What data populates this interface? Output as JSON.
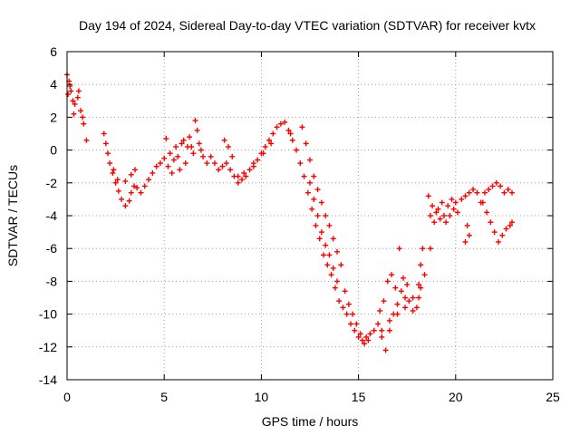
{
  "chart_data": {
    "type": "scatter",
    "title": "Day 194 of 2024, Sidereal Day-to-day VTEC variation (SDTVAR) for receiver kvtx",
    "xlabel": "GPS time / hours",
    "ylabel": "SDTVAR / TECUs",
    "xlim": [
      0,
      25
    ],
    "ylim": [
      -14,
      6
    ],
    "xticks": [
      "0",
      "5",
      "10",
      "15",
      "20",
      "25"
    ],
    "yticks": [
      "-14",
      "-12",
      "-10",
      "-8",
      "-6",
      "-4",
      "-2",
      "0",
      "2",
      "4",
      "6"
    ],
    "grid": true,
    "marker": "+",
    "color": "#ff0000",
    "series": [
      {
        "name": "SDTVAR",
        "points": [
          [
            0.0,
            4.6
          ],
          [
            0.1,
            4.2
          ],
          [
            0.2,
            3.6
          ],
          [
            0.3,
            3.0
          ],
          [
            0.4,
            2.8
          ],
          [
            0.55,
            3.2
          ],
          [
            0.7,
            2.4
          ],
          [
            0.85,
            1.6
          ],
          [
            1.0,
            0.6
          ],
          [
            0.05,
            3.4
          ],
          [
            0.15,
            3.9
          ],
          [
            0.35,
            2.2
          ],
          [
            0.6,
            3.6
          ],
          [
            0.8,
            2.0
          ],
          [
            1.9,
            1.0
          ],
          [
            2.0,
            0.4
          ],
          [
            2.1,
            -0.2
          ],
          [
            2.2,
            -0.8
          ],
          [
            2.35,
            -1.4
          ],
          [
            2.5,
            -2.0
          ],
          [
            2.65,
            -2.5
          ],
          [
            2.8,
            -3.0
          ],
          [
            3.0,
            -3.4
          ],
          [
            3.2,
            -3.1
          ],
          [
            3.3,
            -2.6
          ],
          [
            3.45,
            -2.2
          ],
          [
            3.6,
            -2.3
          ],
          [
            3.8,
            -2.6
          ],
          [
            4.0,
            -2.2
          ],
          [
            4.2,
            -1.8
          ],
          [
            4.4,
            -1.4
          ],
          [
            4.6,
            -1.0
          ],
          [
            2.4,
            -1.2
          ],
          [
            2.6,
            -1.8
          ],
          [
            3.0,
            -1.9
          ],
          [
            3.3,
            -1.5
          ],
          [
            3.5,
            -1.2
          ],
          [
            4.8,
            -0.8
          ],
          [
            5.0,
            -0.5
          ],
          [
            5.1,
            0.7
          ],
          [
            5.2,
            -1.0
          ],
          [
            5.3,
            -0.2
          ],
          [
            5.4,
            -1.4
          ],
          [
            5.5,
            -0.6
          ],
          [
            5.6,
            0.2
          ],
          [
            5.7,
            -0.4
          ],
          [
            5.8,
            -1.2
          ],
          [
            5.9,
            0.4
          ],
          [
            6.0,
            0.6
          ],
          [
            6.1,
            -0.8
          ],
          [
            6.2,
            0.2
          ],
          [
            6.3,
            0.8
          ],
          [
            6.4,
            0.2
          ],
          [
            6.5,
            -0.2
          ],
          [
            6.6,
            1.8
          ],
          [
            6.7,
            1.2
          ],
          [
            6.8,
            0.4
          ],
          [
            6.9,
            0.0
          ],
          [
            7.0,
            -0.4
          ],
          [
            7.2,
            -0.8
          ],
          [
            7.4,
            -0.4
          ],
          [
            7.6,
            -0.8
          ],
          [
            7.8,
            -1.2
          ],
          [
            8.0,
            -1.0
          ],
          [
            8.2,
            -0.8
          ],
          [
            8.4,
            -1.2
          ],
          [
            8.6,
            -1.6
          ],
          [
            8.8,
            -2.0
          ],
          [
            9.0,
            -1.8
          ],
          [
            9.2,
            -1.6
          ],
          [
            9.4,
            -1.2
          ],
          [
            9.6,
            -0.8
          ],
          [
            9.8,
            -0.6
          ],
          [
            10.0,
            -0.2
          ],
          [
            10.2,
            0.2
          ],
          [
            10.4,
            0.6
          ],
          [
            10.6,
            1.0
          ],
          [
            10.8,
            1.4
          ],
          [
            11.0,
            1.6
          ],
          [
            11.2,
            1.7
          ],
          [
            8.1,
            0.6
          ],
          [
            8.3,
            0.2
          ],
          [
            8.5,
            -0.4
          ],
          [
            8.8,
            -1.6
          ],
          [
            9.1,
            -1.4
          ],
          [
            9.6,
            -1.0
          ],
          [
            10.1,
            -0.2
          ],
          [
            10.5,
            0.4
          ],
          [
            11.4,
            1.2
          ],
          [
            11.5,
            1.0
          ],
          [
            11.6,
            0.6
          ],
          [
            11.8,
            0.0
          ],
          [
            12.0,
            -0.8
          ],
          [
            12.2,
            -1.6
          ],
          [
            12.4,
            -2.6
          ],
          [
            12.6,
            -3.6
          ],
          [
            12.8,
            -4.6
          ],
          [
            13.0,
            -5.4
          ],
          [
            13.2,
            -6.4
          ],
          [
            13.4,
            -7.0
          ],
          [
            13.6,
            -7.6
          ],
          [
            13.8,
            -8.4
          ],
          [
            14.0,
            -9.2
          ],
          [
            14.2,
            -9.6
          ],
          [
            12.1,
            1.4
          ],
          [
            12.3,
            0.4
          ],
          [
            12.5,
            -0.6
          ],
          [
            12.7,
            -1.6
          ],
          [
            12.9,
            -2.4
          ],
          [
            13.1,
            -3.2
          ],
          [
            13.3,
            -4.0
          ],
          [
            13.5,
            -4.6
          ],
          [
            13.7,
            -5.4
          ],
          [
            13.9,
            -6.2
          ],
          [
            14.1,
            -7.0
          ],
          [
            12.5,
            -2.0
          ],
          [
            12.7,
            -3.0
          ],
          [
            12.9,
            -4.0
          ],
          [
            13.1,
            -5.0
          ],
          [
            13.3,
            -5.8
          ],
          [
            13.5,
            -6.4
          ],
          [
            13.7,
            -7.2
          ],
          [
            13.9,
            -8.0
          ],
          [
            14.4,
            -10.0
          ],
          [
            14.6,
            -10.6
          ],
          [
            14.8,
            -11.0
          ],
          [
            15.0,
            -11.4
          ],
          [
            15.2,
            -11.6
          ],
          [
            15.4,
            -11.4
          ],
          [
            15.6,
            -11.2
          ],
          [
            15.8,
            -11.0
          ],
          [
            14.3,
            -8.6
          ],
          [
            14.5,
            -9.4
          ],
          [
            14.7,
            -10.0
          ],
          [
            14.9,
            -10.6
          ],
          [
            15.1,
            -11.2
          ],
          [
            15.3,
            -11.8
          ],
          [
            15.5,
            -11.6
          ],
          [
            16.0,
            -10.6
          ],
          [
            16.2,
            -11.4
          ],
          [
            16.4,
            -12.2
          ],
          [
            16.6,
            -11.0
          ],
          [
            16.8,
            -10.0
          ],
          [
            17.0,
            -9.4
          ],
          [
            17.2,
            -8.6
          ],
          [
            17.4,
            -9.0
          ],
          [
            16.1,
            -9.8
          ],
          [
            16.3,
            -9.2
          ],
          [
            16.5,
            -8.0
          ],
          [
            16.7,
            -7.6
          ],
          [
            16.9,
            -8.4
          ],
          [
            17.1,
            -6.0
          ],
          [
            17.3,
            -7.8
          ],
          [
            17.5,
            -8.2
          ],
          [
            17.6,
            -9.2
          ],
          [
            17.8,
            -9.8
          ],
          [
            18.0,
            -9.6
          ],
          [
            18.1,
            -8.2
          ],
          [
            18.2,
            -7.0
          ],
          [
            18.3,
            -6.0
          ],
          [
            18.4,
            -7.6
          ],
          [
            18.1,
            -9.0
          ],
          [
            16.2,
            -11.0
          ],
          [
            16.6,
            -10.4
          ],
          [
            17.0,
            -10.0
          ],
          [
            17.4,
            -9.6
          ],
          [
            17.8,
            -9.0
          ],
          [
            18.2,
            -8.4
          ],
          [
            18.7,
            -6.0
          ],
          [
            18.6,
            -2.8
          ],
          [
            18.8,
            -3.4
          ],
          [
            19.0,
            -3.8
          ],
          [
            19.2,
            -4.2
          ],
          [
            19.4,
            -4.0
          ],
          [
            19.6,
            -3.4
          ],
          [
            19.8,
            -3.0
          ],
          [
            20.0,
            -3.2
          ],
          [
            18.7,
            -4.0
          ],
          [
            18.9,
            -4.4
          ],
          [
            19.1,
            -3.6
          ],
          [
            19.3,
            -3.2
          ],
          [
            19.5,
            -4.4
          ],
          [
            19.7,
            -4.0
          ],
          [
            19.9,
            -3.6
          ],
          [
            20.1,
            -3.8
          ],
          [
            20.3,
            -3.0
          ],
          [
            20.5,
            -2.8
          ],
          [
            20.7,
            -2.6
          ],
          [
            20.9,
            -2.4
          ],
          [
            21.1,
            -2.6
          ],
          [
            21.3,
            -3.2
          ],
          [
            21.5,
            -2.6
          ],
          [
            21.7,
            -2.4
          ],
          [
            21.9,
            -2.2
          ],
          [
            22.1,
            -2.0
          ],
          [
            22.3,
            -2.2
          ],
          [
            22.5,
            -2.6
          ],
          [
            22.7,
            -2.4
          ],
          [
            22.9,
            -2.6
          ],
          [
            20.5,
            -5.6
          ],
          [
            20.7,
            -5.2
          ],
          [
            20.6,
            -4.6
          ],
          [
            21.4,
            -3.2
          ],
          [
            21.6,
            -3.8
          ],
          [
            21.8,
            -4.4
          ],
          [
            22.0,
            -5.0
          ],
          [
            22.2,
            -5.6
          ],
          [
            22.4,
            -5.2
          ],
          [
            22.6,
            -4.8
          ],
          [
            22.8,
            -4.6
          ],
          [
            22.9,
            -4.4
          ]
        ]
      }
    ]
  }
}
